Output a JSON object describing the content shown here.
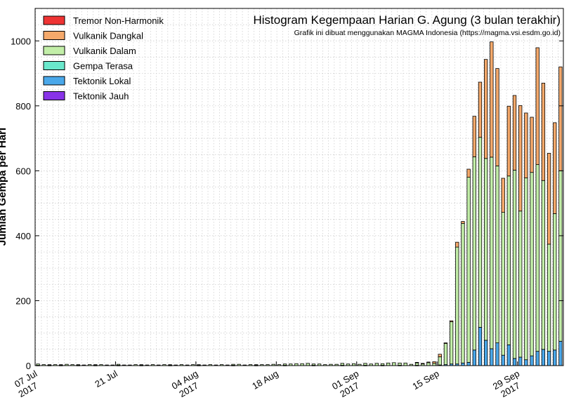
{
  "chart_data": {
    "type": "bar",
    "stacked": true,
    "title": "Histogram Kegempaan Harian G. Agung (3 bulan terakhir)",
    "subtitle": "Grafik ini dibuat menggunakan MAGMA Indonesia (https://magma.vsi.esdm.go.id)",
    "ylabel": "Jumlah Gempa per Hari",
    "xlabel": "",
    "ylim": [
      0,
      1100
    ],
    "yticks": [
      0,
      200,
      400,
      600,
      800,
      1000
    ],
    "grid": true,
    "legend_position": "top-left",
    "x_start": "2017-07-07",
    "x_labels": [
      {
        "date": "2017-07-07",
        "line1": "07 Jul",
        "line2": "2017"
      },
      {
        "date": "2017-07-21",
        "line1": "21 Jul",
        "line2": ""
      },
      {
        "date": "2017-08-04",
        "line1": "04 Aug",
        "line2": "2017"
      },
      {
        "date": "2017-08-18",
        "line1": "18 Aug",
        "line2": ""
      },
      {
        "date": "2017-09-01",
        "line1": "01 Sep",
        "line2": "2017"
      },
      {
        "date": "2017-09-15",
        "line1": "15 Sep",
        "line2": ""
      },
      {
        "date": "2017-09-29",
        "line1": "29 Sep",
        "line2": "2017"
      }
    ],
    "series": [
      {
        "name": "Tremor Non-Harmonik",
        "color": "#ee3333",
        "values": [
          0,
          0,
          0,
          0,
          0,
          0,
          0,
          0,
          0,
          0,
          0,
          0,
          0,
          0,
          0,
          0,
          0,
          0,
          0,
          0,
          0,
          0,
          0,
          0,
          0,
          0,
          0,
          0,
          0,
          0,
          0,
          0,
          0,
          0,
          0,
          0,
          0,
          0,
          0,
          0,
          0,
          0,
          0,
          0,
          0,
          0,
          0,
          0,
          0,
          0,
          0,
          0,
          0,
          0,
          0,
          0,
          0,
          0,
          0,
          0,
          0,
          0,
          0,
          0,
          0,
          0,
          0,
          0,
          0,
          0,
          0,
          0,
          0,
          0,
          0,
          0,
          0,
          0,
          0,
          0,
          0,
          0,
          0,
          0,
          0,
          0,
          0,
          0,
          0,
          0,
          0,
          0
        ]
      },
      {
        "name": "Vulkanik Dangkal",
        "color": "#f5a96b",
        "values": [
          0,
          0,
          0,
          0,
          0,
          0,
          0,
          0,
          0,
          0,
          0,
          0,
          0,
          0,
          0,
          0,
          0,
          0,
          0,
          0,
          0,
          0,
          0,
          0,
          0,
          0,
          0,
          0,
          0,
          0,
          0,
          0,
          0,
          0,
          0,
          0,
          0,
          0,
          0,
          0,
          0,
          0,
          0,
          0,
          0,
          0,
          0,
          0,
          0,
          0,
          0,
          0,
          0,
          0,
          0,
          0,
          0,
          0,
          0,
          0,
          0,
          0,
          0,
          0,
          0,
          0,
          1,
          2,
          2,
          5,
          8,
          2,
          3,
          15,
          6,
          25,
          125,
          170,
          305,
          355,
          300,
          105,
          215,
          230,
          325,
          200,
          170,
          360,
          300,
          280,
          280,
          320
        ]
      },
      {
        "name": "Vulkanik Dalam",
        "color": "#c2eea8",
        "values": [
          4,
          3,
          2,
          3,
          2,
          4,
          3,
          2,
          2,
          3,
          2,
          3,
          2,
          2,
          3,
          2,
          2,
          3,
          2,
          2,
          3,
          2,
          3,
          2,
          2,
          3,
          2,
          3,
          2,
          2,
          3,
          2,
          3,
          2,
          3,
          4,
          2,
          3,
          2,
          3,
          3,
          4,
          3,
          4,
          5,
          6,
          6,
          7,
          4,
          5,
          3,
          4,
          4,
          6,
          5,
          6,
          4,
          6,
          5,
          7,
          5,
          8,
          9,
          7,
          8,
          4,
          8,
          5,
          9,
          7,
          25,
          65,
          130,
          360,
          430,
          570,
          595,
          585,
          560,
          590,
          545,
          440,
          520,
          580,
          450,
          560,
          565,
          575,
          520,
          330,
          420,
          525
        ]
      },
      {
        "name": "Gempa Terasa",
        "color": "#6ae8cc",
        "values": [
          0,
          0,
          0,
          0,
          0,
          0,
          0,
          0,
          0,
          0,
          0,
          0,
          0,
          0,
          0,
          0,
          0,
          0,
          0,
          0,
          0,
          0,
          0,
          0,
          0,
          0,
          0,
          0,
          0,
          0,
          0,
          0,
          0,
          0,
          0,
          0,
          0,
          0,
          0,
          0,
          0,
          0,
          0,
          0,
          0,
          0,
          0,
          0,
          0,
          0,
          0,
          0,
          0,
          0,
          0,
          0,
          0,
          0,
          0,
          0,
          0,
          0,
          0,
          0,
          0,
          0,
          0,
          0,
          0,
          0,
          0,
          0,
          0,
          0,
          0,
          0,
          0,
          0,
          0,
          0,
          0,
          0,
          0,
          0,
          0,
          0,
          0,
          0,
          0,
          0,
          0,
          0
        ]
      },
      {
        "name": "Tektonik Lokal",
        "color": "#4aa8ea",
        "values": [
          1,
          0,
          1,
          0,
          1,
          0,
          0,
          1,
          0,
          0,
          1,
          0,
          0,
          0,
          1,
          0,
          0,
          0,
          1,
          0,
          0,
          0,
          0,
          1,
          0,
          0,
          0,
          0,
          1,
          0,
          0,
          0,
          0,
          0,
          1,
          0,
          0,
          0,
          1,
          0,
          0,
          0,
          0,
          1,
          0,
          0,
          0,
          0,
          1,
          0,
          0,
          0,
          0,
          1,
          0,
          0,
          0,
          1,
          0,
          0,
          1,
          0,
          0,
          1,
          0,
          0,
          1,
          0,
          0,
          0,
          2,
          3,
          5,
          5,
          8,
          10,
          48,
          118,
          78,
          52,
          70,
          32,
          64,
          22,
          26,
          18,
          30,
          44,
          50,
          44,
          48,
          75
        ]
      },
      {
        "name": "Tektonik Jauh",
        "color": "#8833e8",
        "values": [
          0,
          0,
          0,
          0,
          0,
          0,
          0,
          0,
          0,
          0,
          0,
          0,
          0,
          0,
          0,
          0,
          0,
          0,
          0,
          0,
          0,
          0,
          0,
          0,
          0,
          0,
          0,
          0,
          0,
          0,
          0,
          0,
          0,
          0,
          0,
          0,
          0,
          0,
          0,
          0,
          0,
          0,
          0,
          0,
          0,
          0,
          0,
          0,
          0,
          0,
          0,
          0,
          0,
          0,
          0,
          0,
          0,
          0,
          0,
          0,
          0,
          0,
          0,
          0,
          0,
          0,
          0,
          0,
          0,
          0,
          0,
          0,
          0,
          0,
          0,
          0,
          0,
          0,
          0,
          0,
          0,
          0,
          0,
          0,
          0,
          0,
          0,
          0,
          0,
          0,
          0,
          0
        ]
      }
    ]
  }
}
